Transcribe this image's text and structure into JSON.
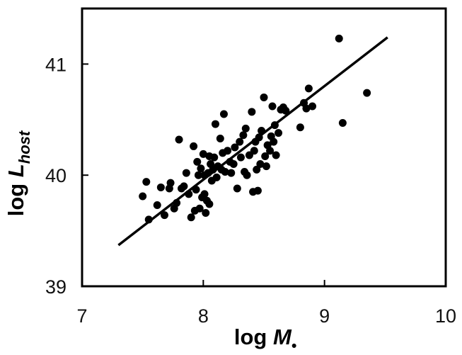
{
  "chart_data": {
    "type": "scatter",
    "xlabel": {
      "prefix": "log ",
      "var": "M",
      "sub": "•"
    },
    "ylabel": {
      "prefix": "log ",
      "var": "L",
      "sub": "host"
    },
    "xlim": [
      7,
      10
    ],
    "ylim": [
      39,
      41.5
    ],
    "xticks": [
      7,
      8,
      9,
      10
    ],
    "yticks": [
      39,
      40,
      41
    ],
    "grid": false,
    "legend": "none",
    "colors": {
      "points": "#000000",
      "line": "#000000",
      "frame": "#000000"
    },
    "fit_line": {
      "x": [
        7.3,
        9.52
      ],
      "y": [
        39.37,
        41.24
      ]
    },
    "points": [
      [
        7.5,
        39.81
      ],
      [
        7.53,
        39.94
      ],
      [
        7.55,
        39.6
      ],
      [
        7.62,
        39.73
      ],
      [
        7.65,
        39.89
      ],
      [
        7.68,
        39.64
      ],
      [
        7.72,
        39.88
      ],
      [
        7.73,
        39.93
      ],
      [
        7.76,
        39.7
      ],
      [
        7.78,
        39.75
      ],
      [
        7.8,
        40.32
      ],
      [
        7.82,
        39.88
      ],
      [
        7.84,
        39.9
      ],
      [
        7.86,
        40.02
      ],
      [
        7.88,
        39.83
      ],
      [
        7.9,
        39.62
      ],
      [
        7.92,
        40.26
      ],
      [
        7.93,
        39.68
      ],
      [
        7.94,
        39.87
      ],
      [
        7.95,
        40.12
      ],
      [
        7.96,
        40.0
      ],
      [
        7.97,
        39.7
      ],
      [
        7.98,
        40.06
      ],
      [
        7.99,
        39.8
      ],
      [
        8.0,
        40.19
      ],
      [
        8.01,
        39.83
      ],
      [
        8.02,
        39.66
      ],
      [
        8.03,
        39.77
      ],
      [
        8.04,
        40.02
      ],
      [
        8.05,
        40.17
      ],
      [
        8.06,
        40.1
      ],
      [
        8.07,
        39.95
      ],
      [
        8.08,
        40.05
      ],
      [
        8.09,
        40.16
      ],
      [
        8.1,
        40.46
      ],
      [
        8.11,
        39.98
      ],
      [
        8.12,
        40.08
      ],
      [
        8.14,
        40.33
      ],
      [
        8.15,
        40.05
      ],
      [
        8.16,
        40.2
      ],
      [
        8.17,
        40.55
      ],
      [
        8.18,
        40.03
      ],
      [
        8.2,
        40.22
      ],
      [
        8.22,
        40.12
      ],
      [
        8.23,
        40.02
      ],
      [
        8.25,
        40.1
      ],
      [
        8.26,
        40.25
      ],
      [
        8.28,
        39.88
      ],
      [
        8.3,
        40.3
      ],
      [
        8.31,
        40.16
      ],
      [
        8.33,
        40.36
      ],
      [
        8.34,
        40.03
      ],
      [
        8.35,
        40.42
      ],
      [
        8.36,
        40.0
      ],
      [
        8.38,
        40.18
      ],
      [
        8.4,
        40.57
      ],
      [
        8.41,
        39.85
      ],
      [
        8.42,
        40.22
      ],
      [
        8.43,
        40.3
      ],
      [
        8.44,
        40.05
      ],
      [
        8.45,
        39.86
      ],
      [
        8.46,
        40.34
      ],
      [
        8.47,
        40.1
      ],
      [
        8.48,
        40.4
      ],
      [
        8.5,
        40.7
      ],
      [
        8.51,
        40.17
      ],
      [
        8.52,
        40.08
      ],
      [
        8.53,
        40.27
      ],
      [
        8.55,
        40.22
      ],
      [
        8.56,
        40.35
      ],
      [
        8.57,
        40.62
      ],
      [
        8.58,
        40.3
      ],
      [
        8.59,
        40.45
      ],
      [
        8.6,
        40.18
      ],
      [
        8.62,
        40.38
      ],
      [
        8.64,
        40.59
      ],
      [
        8.66,
        40.61
      ],
      [
        8.68,
        40.58
      ],
      [
        8.8,
        40.43
      ],
      [
        8.83,
        40.65
      ],
      [
        8.85,
        40.6
      ],
      [
        8.87,
        40.78
      ],
      [
        8.9,
        40.62
      ],
      [
        9.12,
        41.23
      ],
      [
        9.15,
        40.47
      ],
      [
        9.35,
        40.74
      ],
      [
        8.05,
        39.74
      ],
      [
        8.01,
        40.0
      ]
    ]
  }
}
